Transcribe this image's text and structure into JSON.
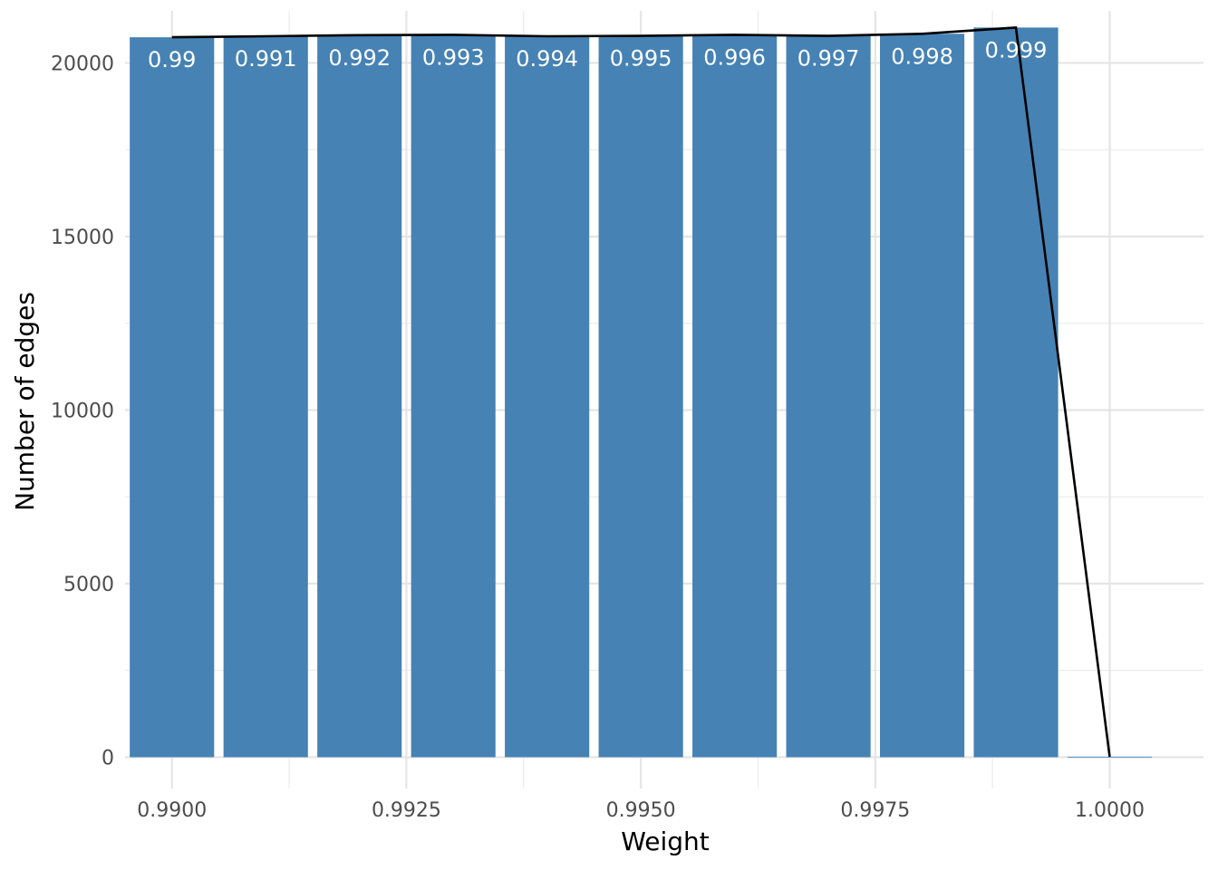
{
  "chart_data": {
    "type": "bar",
    "xlabel": "Weight",
    "ylabel": "Number of edges",
    "xlim": [
      0.9895,
      1.001
    ],
    "ylim": [
      -900,
      21500
    ],
    "grid": true,
    "x_ticks": [
      0.99,
      0.9925,
      0.995,
      0.9975,
      1.0
    ],
    "x_tick_labels": [
      "0.9900",
      "0.9925",
      "0.9950",
      "0.9975",
      "1.0000"
    ],
    "y_ticks": [
      0,
      5000,
      10000,
      15000,
      20000
    ],
    "y_tick_labels": [
      "0",
      "5000",
      "10000",
      "15000",
      "20000"
    ],
    "bar_width": 0.0009,
    "bar_color": "#4682b4",
    "line_color": "#000000",
    "series": [
      {
        "x": [
          0.99,
          0.991,
          0.992,
          0.993,
          0.994,
          0.995,
          0.996,
          0.997,
          0.998,
          0.999,
          1.0
        ],
        "values": [
          20740,
          20770,
          20800,
          20810,
          20770,
          20780,
          20810,
          20780,
          20840,
          21020,
          10
        ],
        "labels": [
          "0.99",
          "0.991",
          "0.992",
          "0.993",
          "0.994",
          "0.995",
          "0.996",
          "0.997",
          "0.998",
          "0.999",
          ""
        ]
      }
    ]
  }
}
